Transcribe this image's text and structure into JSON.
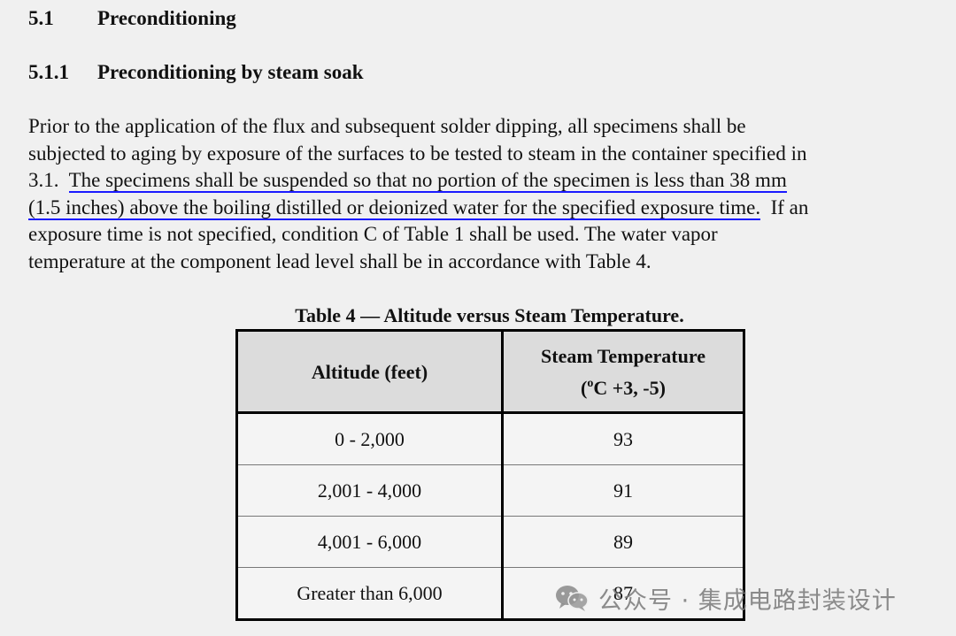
{
  "section": {
    "number": "5.1",
    "title": "Preconditioning"
  },
  "subsection": {
    "number": "5.1.1",
    "title": "Preconditioning by steam soak"
  },
  "paragraph": {
    "line1": "Prior to the application of the flux and subsequent solder dipping, all specimens shall be",
    "line2": "subjected to aging by exposure of the surfaces to be tested to steam in the container specified in",
    "line3_prefix": "3.1.  ",
    "line3_underlined": "The specimens shall be suspended so that no portion of the specimen is less than 38 mm",
    "line4_underlined": "(1.5 inches) above the boiling distilled or deionized water for the specified exposure time.",
    "line4_suffix": "  If an",
    "line5": "exposure time is not specified, condition C of Table 1 shall be used.  The water vapor",
    "line6": "temperature at the component lead level shall be in accordance with Table 4."
  },
  "table": {
    "caption": "Table 4 — Altitude versus Steam Temperature.",
    "header": {
      "col1": "Altitude (feet)",
      "col2_line1": "Steam Temperature",
      "col2_open": "(",
      "col2_degree": "o",
      "col2_rest": "C +3, -5)"
    },
    "rows": [
      {
        "altitude": "0 - 2,000",
        "temp": "93"
      },
      {
        "altitude": "2,001 - 4,000",
        "temp": "91"
      },
      {
        "altitude": "4,001 - 6,000",
        "temp": "89"
      },
      {
        "altitude": "Greater than 6,000",
        "temp": "87"
      }
    ]
  },
  "watermark": {
    "text": "公众号 · 集成电路封装设计",
    "icon": "wechat-icon"
  }
}
